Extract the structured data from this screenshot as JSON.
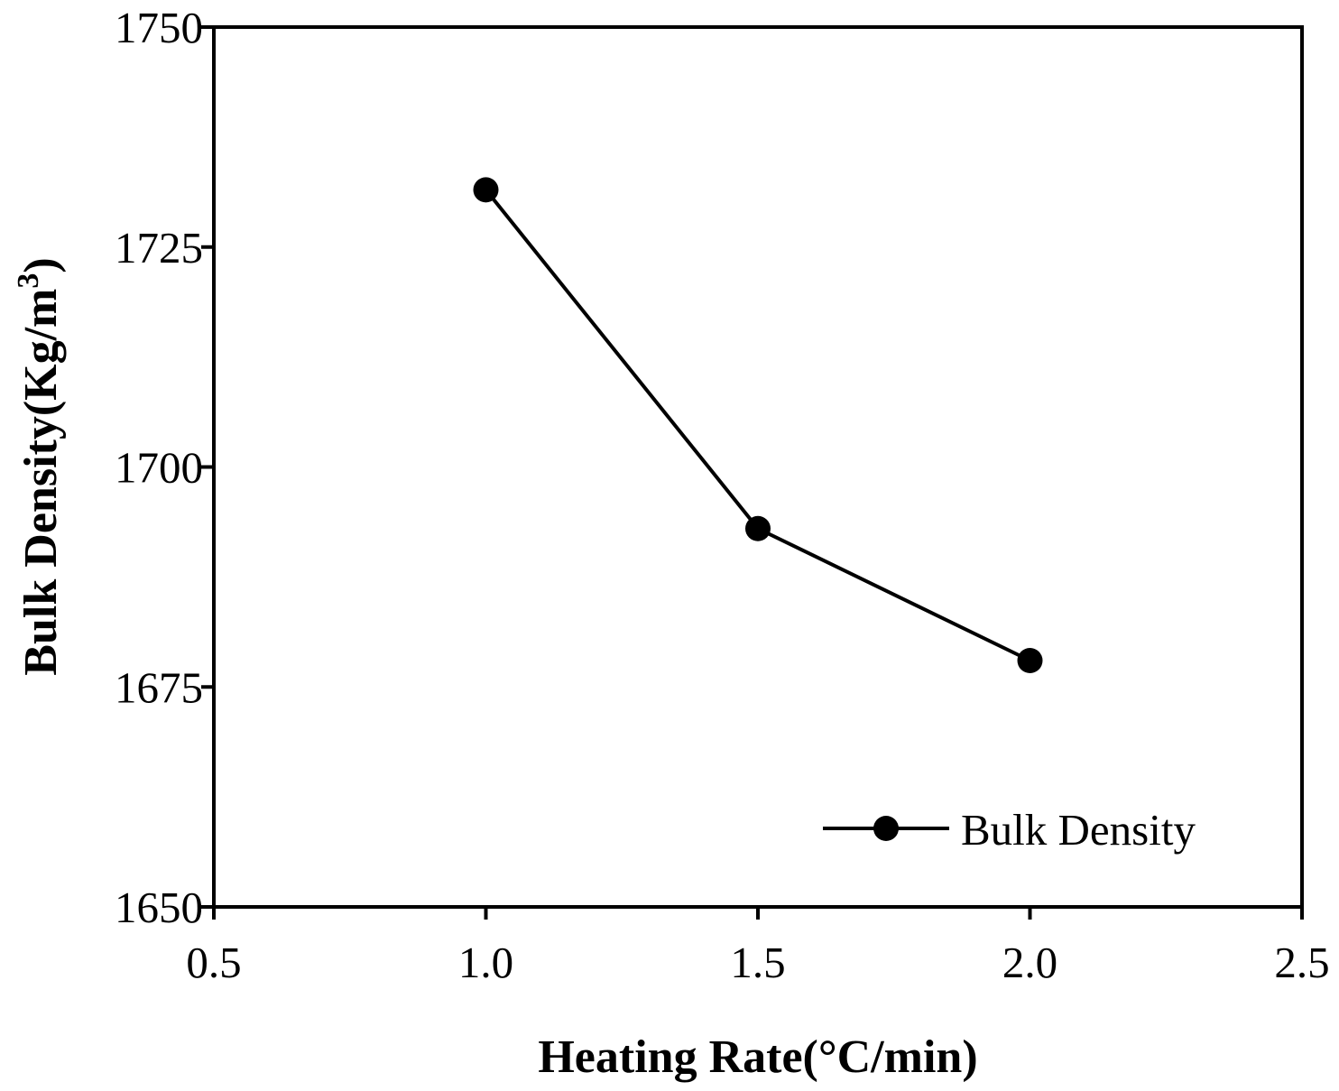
{
  "chart_data": {
    "type": "line",
    "title": "",
    "xlabel": "Heating Rate(°C/min)",
    "ylabel": {
      "main": "Bulk Density(Kg/m",
      "superscript": "3",
      "close": ")"
    },
    "xlim": [
      0.5,
      2.5
    ],
    "ylim": [
      1650,
      1750
    ],
    "x_ticks": [
      0.5,
      1.0,
      1.5,
      2.0,
      2.5
    ],
    "x_tick_labels": [
      "0.5",
      "1.0",
      "1.5",
      "2.0",
      "2.5"
    ],
    "y_ticks": [
      1650,
      1675,
      1700,
      1725,
      1750
    ],
    "y_tick_labels": [
      "1650",
      "1675",
      "1700",
      "1725",
      "1750"
    ],
    "grid": false,
    "legend_position": "bottom-right",
    "series": [
      {
        "name": "Bulk Density",
        "x": [
          1.0,
          1.5,
          2.0
        ],
        "values": [
          1731.5,
          1693,
          1678
        ],
        "color": "#000000",
        "marker": "circle"
      }
    ]
  }
}
